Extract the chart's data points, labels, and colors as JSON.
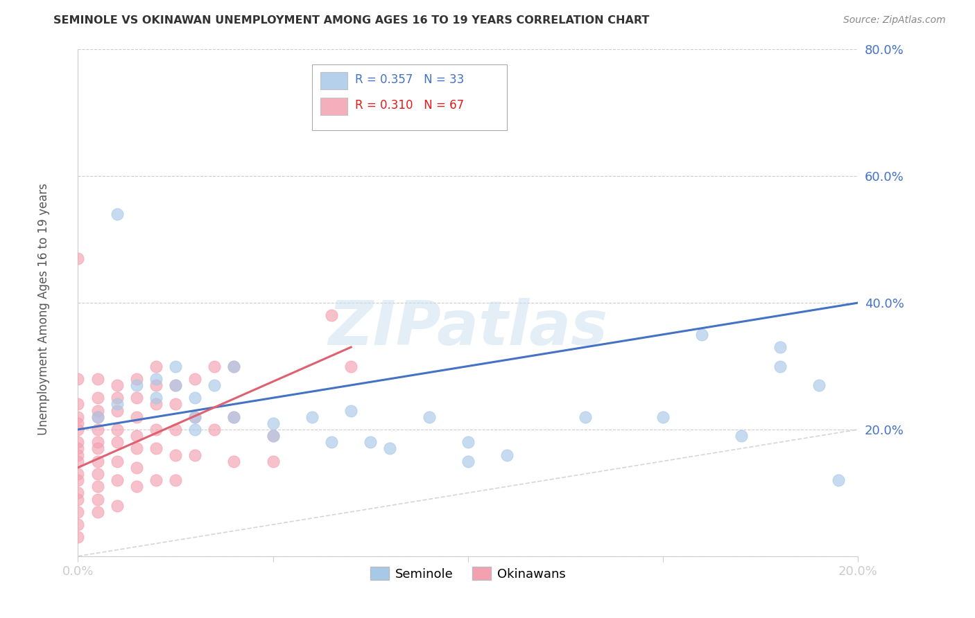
{
  "title": "SEMINOLE VS OKINAWAN UNEMPLOYMENT AMONG AGES 16 TO 19 YEARS CORRELATION CHART",
  "source": "Source: ZipAtlas.com",
  "ylabel": "Unemployment Among Ages 16 to 19 years",
  "xlim": [
    0.0,
    0.2
  ],
  "ylim": [
    0.0,
    0.8
  ],
  "xticks": [
    0.0,
    0.05,
    0.1,
    0.15,
    0.2
  ],
  "yticks": [
    0.0,
    0.2,
    0.4,
    0.6,
    0.8
  ],
  "xtick_labels": [
    "0.0%",
    "",
    "",
    "",
    "20.0%"
  ],
  "ytick_labels": [
    "",
    "20.0%",
    "40.0%",
    "60.0%",
    "80.0%"
  ],
  "seminole_color": "#a8c8e8",
  "okinawan_color": "#f4a0b0",
  "trendline_seminole_color": "#4472c4",
  "trendline_okinawan_color": "#e06070",
  "diagonal_color": "#cccccc",
  "R_seminole": 0.357,
  "N_seminole": 33,
  "R_okinawan": 0.31,
  "N_okinawan": 67,
  "watermark_text": "ZIPatlas",
  "legend_labels": [
    "Seminole",
    "Okinawans"
  ],
  "seminole_x": [
    0.005,
    0.01,
    0.01,
    0.015,
    0.02,
    0.02,
    0.025,
    0.025,
    0.03,
    0.03,
    0.03,
    0.035,
    0.04,
    0.04,
    0.05,
    0.05,
    0.06,
    0.065,
    0.07,
    0.075,
    0.08,
    0.09,
    0.1,
    0.1,
    0.11,
    0.13,
    0.15,
    0.16,
    0.17,
    0.18,
    0.18,
    0.19,
    0.195
  ],
  "seminole_y": [
    0.22,
    0.54,
    0.24,
    0.27,
    0.28,
    0.25,
    0.3,
    0.27,
    0.25,
    0.22,
    0.2,
    0.27,
    0.3,
    0.22,
    0.21,
    0.19,
    0.22,
    0.18,
    0.23,
    0.18,
    0.17,
    0.22,
    0.18,
    0.15,
    0.16,
    0.22,
    0.22,
    0.35,
    0.19,
    0.33,
    0.3,
    0.27,
    0.12
  ],
  "okinawan_x": [
    0.0,
    0.0,
    0.0,
    0.0,
    0.0,
    0.0,
    0.0,
    0.0,
    0.0,
    0.0,
    0.0,
    0.0,
    0.0,
    0.0,
    0.0,
    0.0,
    0.0,
    0.005,
    0.005,
    0.005,
    0.005,
    0.005,
    0.005,
    0.005,
    0.005,
    0.005,
    0.005,
    0.005,
    0.005,
    0.01,
    0.01,
    0.01,
    0.01,
    0.01,
    0.01,
    0.01,
    0.01,
    0.015,
    0.015,
    0.015,
    0.015,
    0.015,
    0.015,
    0.015,
    0.02,
    0.02,
    0.02,
    0.02,
    0.02,
    0.02,
    0.025,
    0.025,
    0.025,
    0.025,
    0.025,
    0.03,
    0.03,
    0.03,
    0.035,
    0.035,
    0.04,
    0.04,
    0.04,
    0.05,
    0.05,
    0.065,
    0.07
  ],
  "okinawan_y": [
    0.47,
    0.28,
    0.24,
    0.22,
    0.21,
    0.2,
    0.18,
    0.17,
    0.16,
    0.15,
    0.13,
    0.12,
    0.1,
    0.09,
    0.07,
    0.05,
    0.03,
    0.28,
    0.25,
    0.23,
    0.22,
    0.2,
    0.18,
    0.17,
    0.15,
    0.13,
    0.11,
    0.09,
    0.07,
    0.27,
    0.25,
    0.23,
    0.2,
    0.18,
    0.15,
    0.12,
    0.08,
    0.28,
    0.25,
    0.22,
    0.19,
    0.17,
    0.14,
    0.11,
    0.3,
    0.27,
    0.24,
    0.2,
    0.17,
    0.12,
    0.27,
    0.24,
    0.2,
    0.16,
    0.12,
    0.28,
    0.22,
    0.16,
    0.3,
    0.2,
    0.3,
    0.22,
    0.15,
    0.19,
    0.15,
    0.38,
    0.3
  ],
  "trendline_sem_x0": 0.0,
  "trendline_sem_y0": 0.2,
  "trendline_sem_x1": 0.2,
  "trendline_sem_y1": 0.4,
  "trendline_oki_x0": 0.0,
  "trendline_oki_y0": 0.14,
  "trendline_oki_x1": 0.07,
  "trendline_oki_y1": 0.33
}
